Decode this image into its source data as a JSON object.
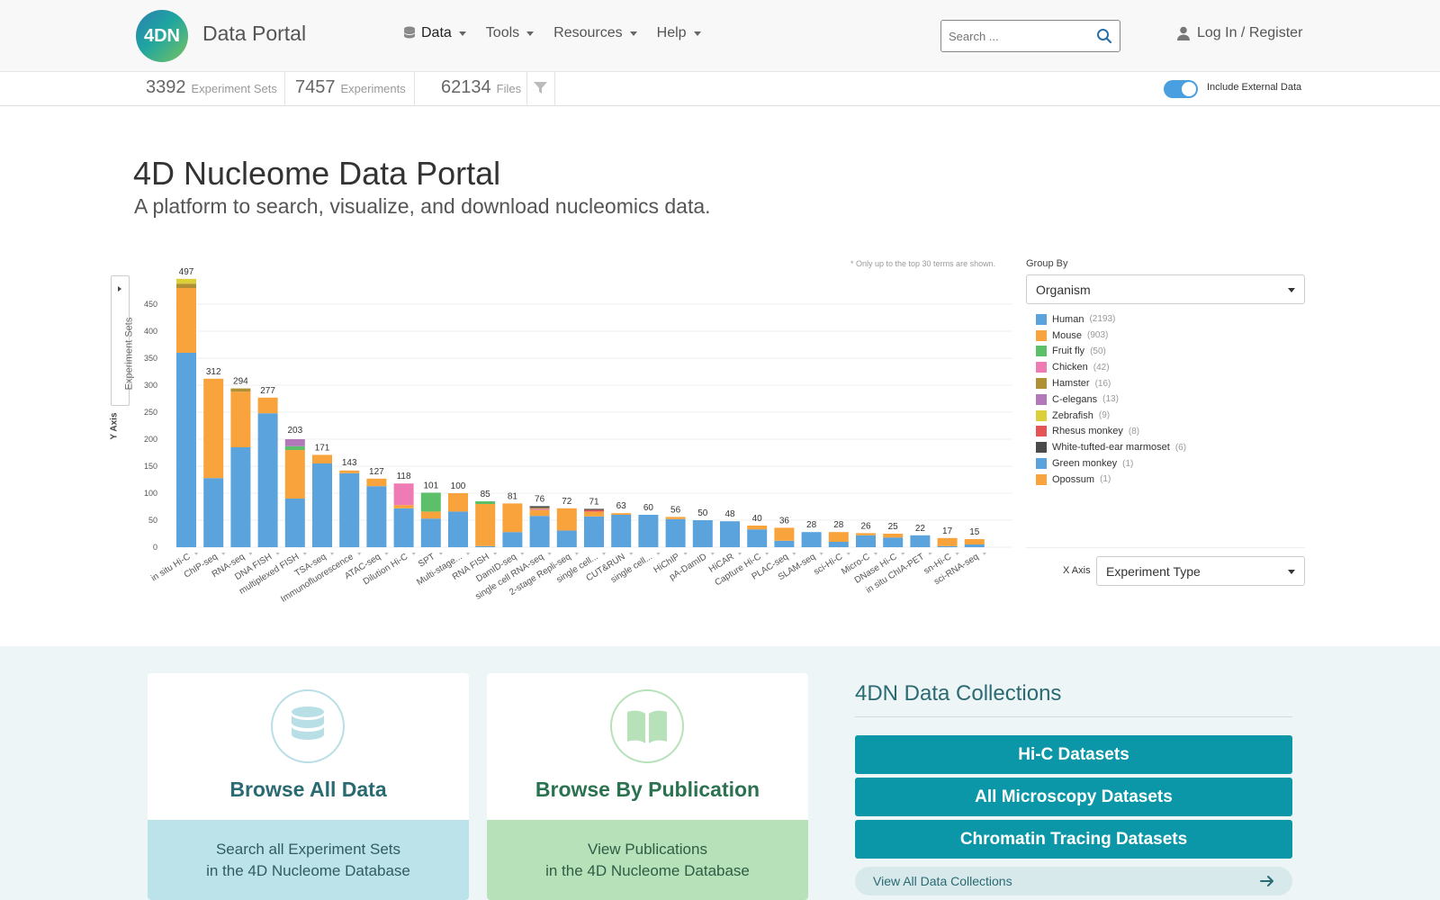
{
  "header": {
    "logo_text": "4DN",
    "brand": "Data Portal",
    "nav": [
      {
        "label": "Data"
      },
      {
        "label": "Tools"
      },
      {
        "label": "Resources"
      },
      {
        "label": "Help"
      }
    ],
    "search_placeholder": "Search ...",
    "login": "Log In / Register"
  },
  "stats": {
    "experiment_sets_count": "3392",
    "experiment_sets_label": "Experiment Sets",
    "experiments_count": "7457",
    "experiments_label": "Experiments",
    "files_count": "62134",
    "files_label": "Files",
    "include_external": "Include External Data"
  },
  "hero": {
    "title": "4D Nucleome Data Portal",
    "subtitle": "A platform to search, visualize, and download nucleomics data."
  },
  "chart_controls": {
    "note": "* Only up to the top 30 terms are shown.",
    "y_axis_button": "Experiment Sets",
    "y_axis_label": "Y Axis",
    "group_by_label": "Group By",
    "group_by_value": "Organism",
    "x_axis_label": "X Axis",
    "x_axis_value": "Experiment Type"
  },
  "legend": [
    {
      "name": "Human",
      "count": "(2193)",
      "color": "#5ba3dc"
    },
    {
      "name": "Mouse",
      "count": "(903)",
      "color": "#f9a33c"
    },
    {
      "name": "Fruit fly",
      "count": "(50)",
      "color": "#5cc06a"
    },
    {
      "name": "Chicken",
      "count": "(42)",
      "color": "#ef7bb4"
    },
    {
      "name": "Hamster",
      "count": "(16)",
      "color": "#b09034"
    },
    {
      "name": "C-elegans",
      "count": "(13)",
      "color": "#b278ba"
    },
    {
      "name": "Zebrafish",
      "count": "(9)",
      "color": "#dcd03a"
    },
    {
      "name": "Rhesus monkey",
      "count": "(8)",
      "color": "#e55454"
    },
    {
      "name": "White-tufted-ear marmoset",
      "count": "(6)",
      "color": "#4a4a4a"
    },
    {
      "name": "Green monkey",
      "count": "(1)",
      "color": "#5ba3dc"
    },
    {
      "name": "Opossum",
      "count": "(1)",
      "color": "#f9a33c"
    }
  ],
  "chart_data": {
    "type": "bar",
    "stacked": true,
    "ylim": [
      0,
      500
    ],
    "yticks": [
      0,
      50,
      100,
      150,
      200,
      250,
      300,
      350,
      400,
      450
    ],
    "categories": [
      "in situ Hi-C",
      "ChIP-seq",
      "RNA-seq",
      "DNA FISH",
      "multiplexed FISH",
      "TSA-seq",
      "Immunofluorescence",
      "ATAC-seq",
      "Dilution Hi-C",
      "SPT",
      "Multi-stage...",
      "RNA FISH",
      "DamID-seq",
      "single cell RNA-seq",
      "2-stage Repli-seq",
      "single cell...",
      "CUT&RUN",
      "single cell...",
      "HiChIP",
      "pA-DamID",
      "HiCAR",
      "Capture Hi-C",
      "PLAC-seq",
      "SLAM-seq",
      "sci-Hi-C",
      "Micro-C",
      "DNase Hi-C",
      "in situ ChIA-PET",
      "sn-Hi-C",
      "sci-RNA-seq"
    ],
    "totals": [
      497,
      312,
      294,
      277,
      203,
      171,
      143,
      127,
      118,
      101,
      100,
      85,
      81,
      76,
      72,
      71,
      63,
      60,
      56,
      50,
      48,
      40,
      36,
      28,
      28,
      26,
      25,
      22,
      17,
      15
    ],
    "series": [
      {
        "name": "Human",
        "values": [
          360,
          128,
          185,
          248,
          90,
          155,
          137,
          113,
          72,
          53,
          66,
          2,
          28,
          58,
          31,
          57,
          60,
          60,
          52,
          50,
          48,
          33,
          12,
          28,
          10,
          22,
          18,
          22,
          2,
          5
        ]
      },
      {
        "name": "Mouse",
        "values": [
          120,
          184,
          103,
          29,
          90,
          16,
          5,
          14,
          6,
          13,
          34,
          78,
          53,
          11,
          41,
          9,
          3,
          0,
          4,
          0,
          0,
          7,
          24,
          0,
          18,
          4,
          7,
          0,
          15,
          10
        ]
      },
      {
        "name": "Fruit fly",
        "values": [
          0,
          0,
          0,
          0,
          7,
          0,
          0,
          0,
          0,
          35,
          0,
          5,
          0,
          0,
          0,
          0,
          0,
          0,
          0,
          0,
          0,
          0,
          0,
          0,
          0,
          0,
          0,
          0,
          0,
          0
        ]
      },
      {
        "name": "Chicken",
        "values": [
          0,
          0,
          0,
          0,
          0,
          0,
          0,
          0,
          40,
          0,
          0,
          0,
          0,
          2,
          0,
          0,
          0,
          0,
          0,
          0,
          0,
          0,
          0,
          0,
          0,
          0,
          0,
          0,
          0,
          0
        ]
      },
      {
        "name": "Hamster",
        "values": [
          8,
          0,
          6,
          0,
          0,
          0,
          0,
          0,
          0,
          0,
          0,
          0,
          0,
          2,
          0,
          0,
          0,
          0,
          0,
          0,
          0,
          0,
          0,
          0,
          0,
          0,
          0,
          0,
          0,
          0
        ]
      },
      {
        "name": "C-elegans",
        "values": [
          0,
          0,
          0,
          0,
          13,
          0,
          0,
          0,
          0,
          0,
          0,
          0,
          0,
          0,
          0,
          0,
          0,
          0,
          0,
          0,
          0,
          0,
          0,
          0,
          0,
          0,
          0,
          0,
          0,
          0
        ]
      },
      {
        "name": "Zebrafish",
        "values": [
          9,
          0,
          0,
          0,
          0,
          0,
          0,
          0,
          0,
          0,
          0,
          0,
          0,
          0,
          0,
          0,
          0,
          0,
          0,
          0,
          0,
          0,
          0,
          0,
          0,
          0,
          0,
          0,
          0,
          0
        ]
      },
      {
        "name": "Rhesus monkey",
        "values": [
          0,
          0,
          0,
          0,
          0,
          0,
          0,
          0,
          0,
          0,
          0,
          0,
          0,
          0,
          0,
          3,
          0,
          0,
          0,
          0,
          0,
          0,
          0,
          0,
          0,
          0,
          0,
          0,
          0,
          0
        ]
      },
      {
        "name": "White-tufted-ear marmoset",
        "values": [
          0,
          0,
          0,
          0,
          0,
          0,
          0,
          0,
          0,
          0,
          0,
          0,
          0,
          3,
          0,
          2,
          0,
          0,
          0,
          0,
          0,
          0,
          0,
          0,
          0,
          0,
          0,
          0,
          0,
          0
        ]
      }
    ]
  },
  "cards": [
    {
      "title": "Browse All Data",
      "line1": "Search all Experiment Sets",
      "line2": "in the 4D Nucleome Database",
      "title_color": "#2a6a72",
      "bottom_color": "#bde3ea",
      "circle_color": "#b9dfe6"
    },
    {
      "title": "Browse By Publication",
      "line1": "View Publications",
      "line2": "in the 4D Nucleome Database",
      "title_color": "#2a7250",
      "bottom_color": "#b7e2b9",
      "circle_color": "#b7e2b9"
    }
  ],
  "collections": {
    "title": "4DN Data Collections",
    "buttons": [
      "Hi-C Datasets",
      "All Microscopy Datasets",
      "Chromatin Tracing Datasets"
    ],
    "view_all": "View All Data Collections"
  }
}
